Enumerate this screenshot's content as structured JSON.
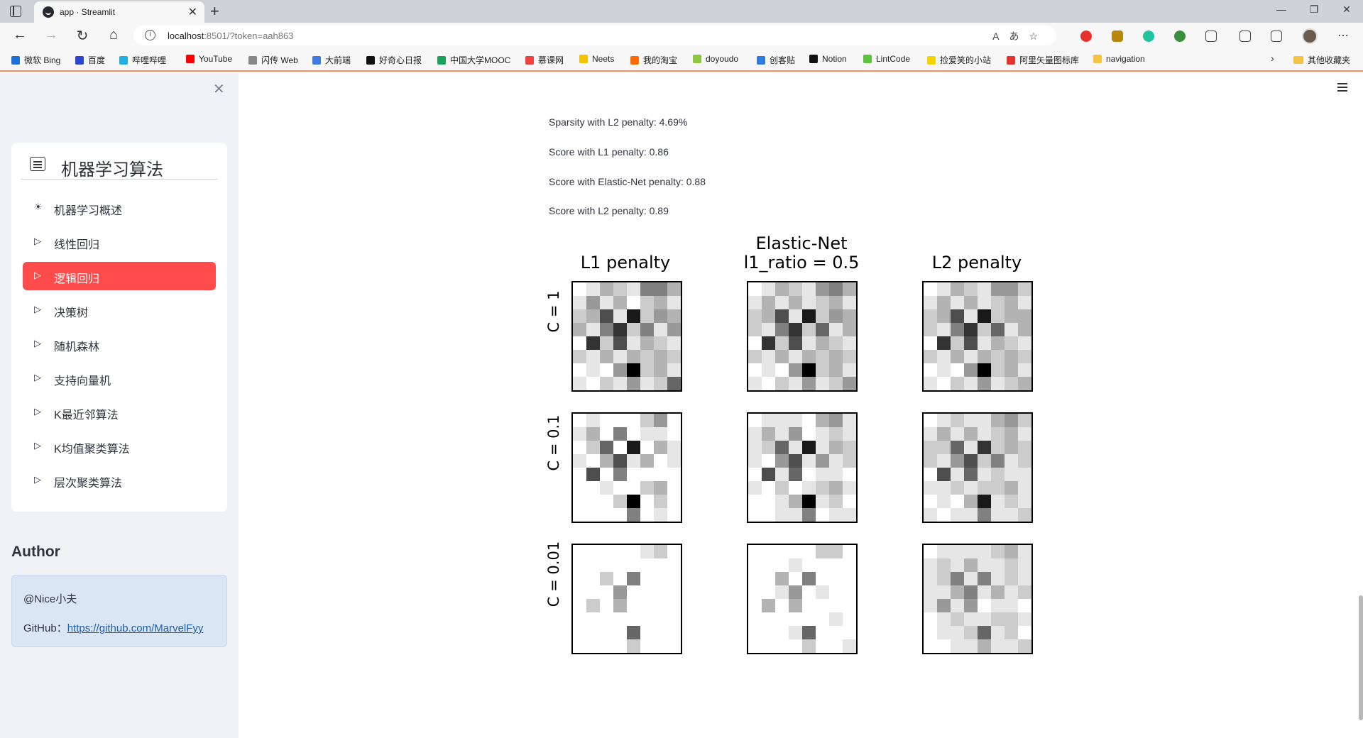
{
  "browser": {
    "tab_title": "app · Streamlit",
    "url_host": "localhost",
    "url_rest": ":8501/?token=aah863",
    "bookmarks": [
      {
        "label": "微软 Bing",
        "color": "#1f6fd6"
      },
      {
        "label": "百度",
        "color": "#2d47d3"
      },
      {
        "label": "哔哩哔哩",
        "color": "#23ade5"
      },
      {
        "label": "YouTube",
        "color": "#ff0000"
      },
      {
        "label": "闪传 Web",
        "color": "#888888"
      },
      {
        "label": "大前端",
        "color": "#3d7be0"
      },
      {
        "label": "好奇心日报",
        "color": "#111111"
      },
      {
        "label": "中国大学MOOC",
        "color": "#1aa35a"
      },
      {
        "label": "慕课网",
        "color": "#f04040"
      },
      {
        "label": "Neets",
        "color": "#f2c200"
      },
      {
        "label": "我的淘宝",
        "color": "#ff6a00"
      },
      {
        "label": "doyoudo",
        "color": "#8dc63f"
      },
      {
        "label": "创客贴",
        "color": "#2f7de1"
      },
      {
        "label": "Notion",
        "color": "#111111"
      },
      {
        "label": "LintCode",
        "color": "#5cc43c"
      },
      {
        "label": "捡爱笑的小站",
        "color": "#f5d200"
      },
      {
        "label": "阿里矢量图标库",
        "color": "#e8312b"
      },
      {
        "label": "navigation",
        "color": "#f5c242"
      }
    ],
    "other_bookmarks": "其他收藏夹"
  },
  "sidebar": {
    "menu_title": "机器学习算法",
    "items": [
      {
        "label": "机器学习概述",
        "icon": "☀"
      },
      {
        "label": "线性回归",
        "icon": "▷"
      },
      {
        "label": "逻辑回归",
        "icon": "▷"
      },
      {
        "label": "决策树",
        "icon": "▷"
      },
      {
        "label": "随机森林",
        "icon": "▷"
      },
      {
        "label": "支持向量机",
        "icon": "▷"
      },
      {
        "label": "K最近邻算法",
        "icon": "▷"
      },
      {
        "label": "K均值聚类算法",
        "icon": "▷"
      },
      {
        "label": "层次聚类算法",
        "icon": "▷"
      }
    ],
    "active_item": "逻辑回归",
    "author_title": "Author",
    "author_name": "@Nice小夫",
    "github_label": "GitHub：",
    "github_link": "https://github.com/MarvelFyy"
  },
  "main": {
    "results": [
      "Sparsity with L2 penalty: 4.69%",
      "Score with L1 penalty: 0.86",
      "Score with Elastic-Net penalty: 0.88",
      "Score with L2 penalty: 0.89"
    ],
    "figure": {
      "columns": [
        {
          "title_line1": "",
          "title_line2": "L1 penalty"
        },
        {
          "title_line1": "Elastic-Net",
          "title_line2": "l1_ratio = 0.5"
        },
        {
          "title_line1": "",
          "title_line2": "L2 penalty"
        }
      ],
      "rows": [
        "C = 1",
        "C = 0.1",
        "C = 0.01"
      ]
    }
  },
  "chart_data": {
    "type": "heatmap",
    "title": "",
    "col_titles": [
      "L1 penalty",
      "Elastic-Net l1_ratio = 0.5",
      "L2 penalty"
    ],
    "row_titles": [
      "C = 1",
      "C = 0.1",
      "C = 0.01"
    ],
    "cmap": "binary",
    "grid_size": [
      8,
      8
    ],
    "panels": [
      [
        [
          [
            0.0,
            0.1,
            0.3,
            0.2,
            0.1,
            0.5,
            0.5,
            0.3
          ],
          [
            0.1,
            0.4,
            0.1,
            0.3,
            0.0,
            0.2,
            0.3,
            0.1
          ],
          [
            0.2,
            0.3,
            0.7,
            0.1,
            0.9,
            0.2,
            0.4,
            0.3
          ],
          [
            0.3,
            0.1,
            0.5,
            0.8,
            0.2,
            0.5,
            0.1,
            0.4
          ],
          [
            0.0,
            0.8,
            0.2,
            0.7,
            0.1,
            0.3,
            0.2,
            0.1
          ],
          [
            0.2,
            0.1,
            0.3,
            0.1,
            0.3,
            0.2,
            0.3,
            0.2
          ],
          [
            0.0,
            0.1,
            0.0,
            0.4,
            1.0,
            0.2,
            0.3,
            0.1
          ],
          [
            0.1,
            0.0,
            0.2,
            0.1,
            0.4,
            0.1,
            0.2,
            0.6
          ]
        ],
        [
          [
            0.0,
            0.1,
            0.3,
            0.2,
            0.1,
            0.4,
            0.5,
            0.3
          ],
          [
            0.1,
            0.3,
            0.1,
            0.3,
            0.1,
            0.2,
            0.3,
            0.1
          ],
          [
            0.2,
            0.3,
            0.7,
            0.1,
            0.9,
            0.2,
            0.4,
            0.3
          ],
          [
            0.2,
            0.1,
            0.5,
            0.8,
            0.2,
            0.6,
            0.1,
            0.3
          ],
          [
            0.0,
            0.8,
            0.2,
            0.7,
            0.1,
            0.3,
            0.2,
            0.1
          ],
          [
            0.2,
            0.1,
            0.3,
            0.1,
            0.3,
            0.2,
            0.3,
            0.2
          ],
          [
            0.0,
            0.1,
            0.0,
            0.4,
            1.0,
            0.2,
            0.3,
            0.1
          ],
          [
            0.1,
            0.0,
            0.2,
            0.1,
            0.4,
            0.1,
            0.2,
            0.4
          ]
        ],
        [
          [
            0.0,
            0.1,
            0.3,
            0.2,
            0.1,
            0.4,
            0.4,
            0.2
          ],
          [
            0.1,
            0.3,
            0.1,
            0.3,
            0.1,
            0.2,
            0.3,
            0.1
          ],
          [
            0.2,
            0.3,
            0.7,
            0.1,
            0.9,
            0.2,
            0.3,
            0.3
          ],
          [
            0.2,
            0.1,
            0.5,
            0.8,
            0.2,
            0.6,
            0.1,
            0.3
          ],
          [
            0.0,
            0.8,
            0.2,
            0.7,
            0.1,
            0.3,
            0.2,
            0.1
          ],
          [
            0.2,
            0.1,
            0.3,
            0.1,
            0.3,
            0.2,
            0.3,
            0.2
          ],
          [
            0.0,
            0.1,
            0.0,
            0.4,
            1.0,
            0.2,
            0.3,
            0.1
          ],
          [
            0.1,
            0.0,
            0.2,
            0.1,
            0.4,
            0.1,
            0.2,
            0.3
          ]
        ]
      ],
      [
        [
          [
            0.0,
            0.1,
            0.0,
            0.0,
            0.0,
            0.2,
            0.4,
            0.0
          ],
          [
            0.1,
            0.3,
            0.0,
            0.5,
            0.0,
            0.1,
            0.1,
            0.0
          ],
          [
            0.0,
            0.2,
            0.6,
            0.0,
            0.9,
            0.0,
            0.3,
            0.1
          ],
          [
            0.1,
            0.0,
            0.3,
            0.7,
            0.1,
            0.3,
            0.0,
            0.1
          ],
          [
            0.0,
            0.7,
            0.0,
            0.5,
            0.0,
            0.0,
            0.0,
            0.0
          ],
          [
            0.0,
            0.0,
            0.1,
            0.0,
            0.0,
            0.2,
            0.3,
            0.0
          ],
          [
            0.0,
            0.0,
            0.0,
            0.2,
            1.0,
            0.0,
            0.2,
            0.0
          ],
          [
            0.0,
            0.0,
            0.0,
            0.0,
            0.5,
            0.0,
            0.1,
            0.0
          ]
        ],
        [
          [
            0.0,
            0.1,
            0.1,
            0.1,
            0.0,
            0.3,
            0.4,
            0.1
          ],
          [
            0.1,
            0.3,
            0.1,
            0.4,
            0.0,
            0.1,
            0.2,
            0.1
          ],
          [
            0.1,
            0.2,
            0.6,
            0.1,
            0.9,
            0.1,
            0.3,
            0.2
          ],
          [
            0.1,
            0.0,
            0.4,
            0.7,
            0.1,
            0.4,
            0.1,
            0.2
          ],
          [
            0.0,
            0.7,
            0.1,
            0.6,
            0.0,
            0.1,
            0.1,
            0.0
          ],
          [
            0.1,
            0.0,
            0.2,
            0.0,
            0.1,
            0.2,
            0.3,
            0.1
          ],
          [
            0.0,
            0.0,
            0.1,
            0.3,
            1.0,
            0.1,
            0.2,
            0.0
          ],
          [
            0.0,
            0.0,
            0.1,
            0.1,
            0.5,
            0.0,
            0.1,
            0.1
          ]
        ],
        [
          [
            0.0,
            0.1,
            0.2,
            0.1,
            0.1,
            0.3,
            0.4,
            0.2
          ],
          [
            0.1,
            0.3,
            0.1,
            0.3,
            0.1,
            0.2,
            0.3,
            0.1
          ],
          [
            0.2,
            0.2,
            0.6,
            0.1,
            0.8,
            0.2,
            0.3,
            0.2
          ],
          [
            0.2,
            0.1,
            0.4,
            0.7,
            0.2,
            0.5,
            0.1,
            0.2
          ],
          [
            0.0,
            0.7,
            0.1,
            0.6,
            0.1,
            0.2,
            0.1,
            0.1
          ],
          [
            0.1,
            0.1,
            0.2,
            0.1,
            0.2,
            0.2,
            0.3,
            0.1
          ],
          [
            0.0,
            0.1,
            0.0,
            0.3,
            0.9,
            0.1,
            0.2,
            0.1
          ],
          [
            0.1,
            0.0,
            0.1,
            0.1,
            0.5,
            0.1,
            0.1,
            0.2
          ]
        ]
      ],
      [
        [
          [
            0.0,
            0.0,
            0.0,
            0.0,
            0.0,
            0.1,
            0.2,
            0.0
          ],
          [
            0.0,
            0.0,
            0.0,
            0.0,
            0.0,
            0.0,
            0.0,
            0.0
          ],
          [
            0.0,
            0.0,
            0.2,
            0.0,
            0.5,
            0.0,
            0.0,
            0.0
          ],
          [
            0.0,
            0.0,
            0.0,
            0.4,
            0.0,
            0.0,
            0.0,
            0.0
          ],
          [
            0.0,
            0.2,
            0.0,
            0.3,
            0.0,
            0.0,
            0.0,
            0.0
          ],
          [
            0.0,
            0.0,
            0.0,
            0.0,
            0.0,
            0.0,
            0.0,
            0.0
          ],
          [
            0.0,
            0.0,
            0.0,
            0.0,
            0.6,
            0.0,
            0.0,
            0.0
          ],
          [
            0.0,
            0.0,
            0.0,
            0.0,
            0.2,
            0.0,
            0.0,
            0.0
          ]
        ],
        [
          [
            0.0,
            0.0,
            0.0,
            0.0,
            0.0,
            0.2,
            0.2,
            0.0
          ],
          [
            0.0,
            0.0,
            0.0,
            0.1,
            0.0,
            0.0,
            0.0,
            0.0
          ],
          [
            0.0,
            0.0,
            0.3,
            0.0,
            0.5,
            0.0,
            0.0,
            0.0
          ],
          [
            0.0,
            0.0,
            0.1,
            0.4,
            0.0,
            0.1,
            0.0,
            0.0
          ],
          [
            0.0,
            0.3,
            0.0,
            0.3,
            0.0,
            0.0,
            0.0,
            0.0
          ],
          [
            0.0,
            0.0,
            0.0,
            0.0,
            0.0,
            0.0,
            0.1,
            0.0
          ],
          [
            0.0,
            0.0,
            0.0,
            0.1,
            0.6,
            0.0,
            0.0,
            0.0
          ],
          [
            0.0,
            0.0,
            0.0,
            0.0,
            0.2,
            0.0,
            0.0,
            0.1
          ]
        ],
        [
          [
            0.0,
            0.1,
            0.1,
            0.1,
            0.1,
            0.2,
            0.3,
            0.1
          ],
          [
            0.1,
            0.2,
            0.1,
            0.3,
            0.1,
            0.1,
            0.2,
            0.1
          ],
          [
            0.1,
            0.2,
            0.5,
            0.1,
            0.5,
            0.1,
            0.2,
            0.1
          ],
          [
            0.1,
            0.1,
            0.3,
            0.5,
            0.1,
            0.3,
            0.1,
            0.2
          ],
          [
            0.1,
            0.4,
            0.1,
            0.4,
            0.0,
            0.1,
            0.1,
            0.0
          ],
          [
            0.0,
            0.1,
            0.2,
            0.1,
            0.1,
            0.2,
            0.2,
            0.1
          ],
          [
            0.0,
            0.1,
            0.1,
            0.2,
            0.6,
            0.1,
            0.2,
            0.0
          ],
          [
            0.0,
            0.0,
            0.1,
            0.1,
            0.3,
            0.1,
            0.1,
            0.2
          ]
        ]
      ]
    ]
  }
}
